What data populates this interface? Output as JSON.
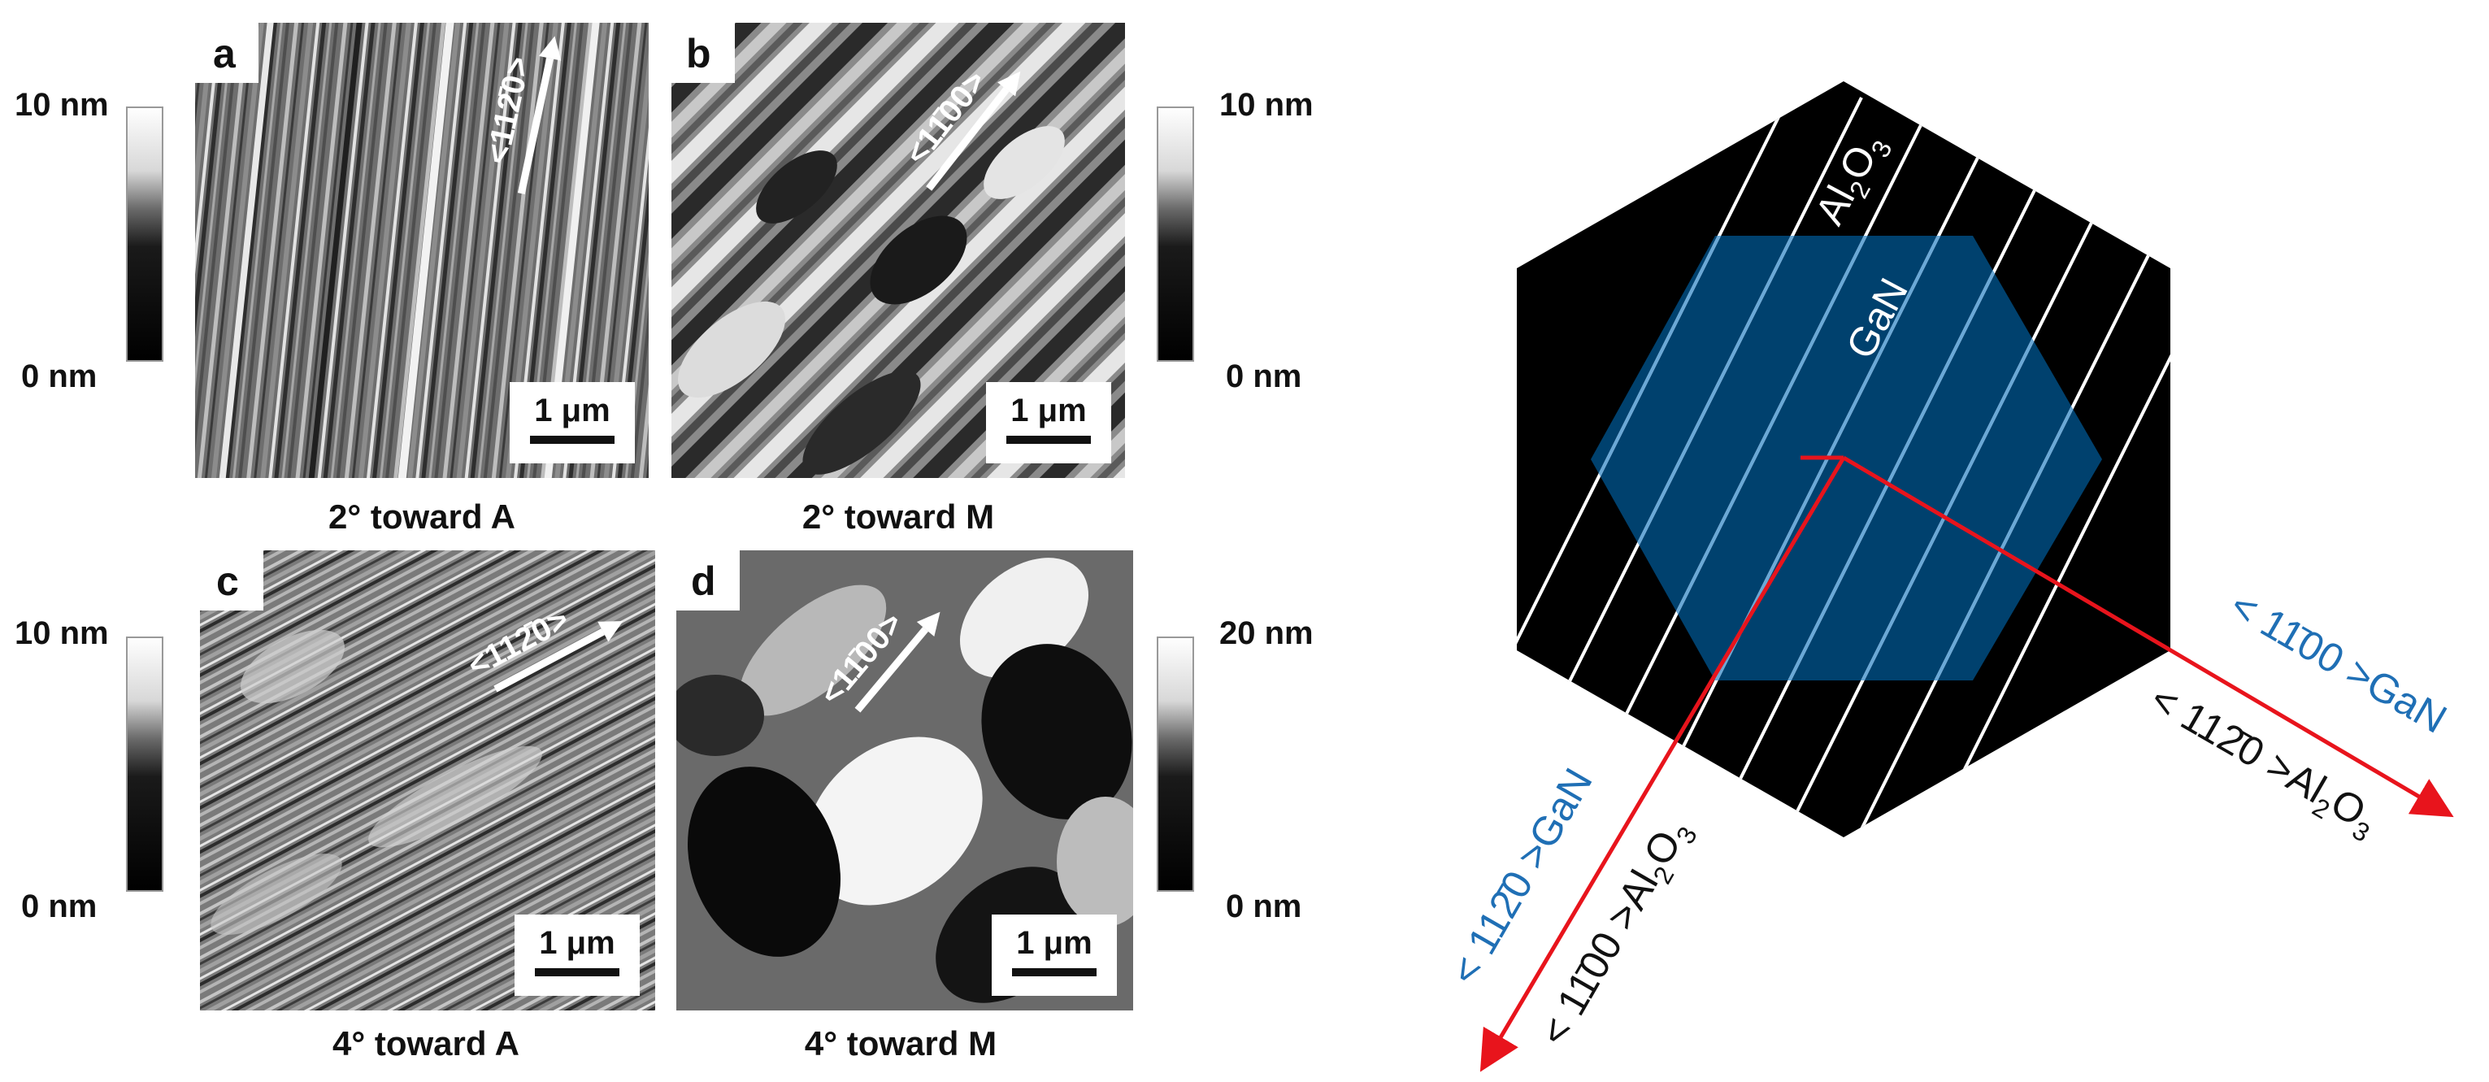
{
  "panels": [
    {
      "letter": "a",
      "caption": "2° toward A",
      "direction": "<112̄0>",
      "scalebar": "1 μm"
    },
    {
      "letter": "b",
      "caption": "2° toward M",
      "direction": "<11̄00>",
      "scalebar": "1 μm"
    },
    {
      "letter": "c",
      "caption": "4° toward A",
      "direction": "<112̄0>",
      "scalebar": "1 μm"
    },
    {
      "letter": "d",
      "caption": "4° toward M",
      "direction": "<11̄00>",
      "scalebar": "1 μm"
    }
  ],
  "colorbars": [
    {
      "top": "10 nm",
      "bottom": "0 nm"
    },
    {
      "top": "10 nm",
      "bottom": "0 nm"
    },
    {
      "top": "10 nm",
      "bottom": "0 nm"
    },
    {
      "top": "20 nm",
      "bottom": "0 nm"
    }
  ],
  "diagram": {
    "substrate_label": "Al",
    "substrate_sub1": "2",
    "substrate_o": "O",
    "substrate_sub2": "3",
    "film_label": "GaN",
    "axis_right_gan": "< 11̄00 >GaN",
    "axis_right_al_prefix": "< 112̄0 >Al",
    "axis_left_gan": "< 112̄0 >GaN",
    "axis_left_al_prefix": "< 11̄00 >Al",
    "colors": {
      "substrate": "#000000",
      "film": "#00416e",
      "axis": "#e8141c",
      "gan_text": "#1f6fb5",
      "stripe": "#ffffff"
    }
  }
}
